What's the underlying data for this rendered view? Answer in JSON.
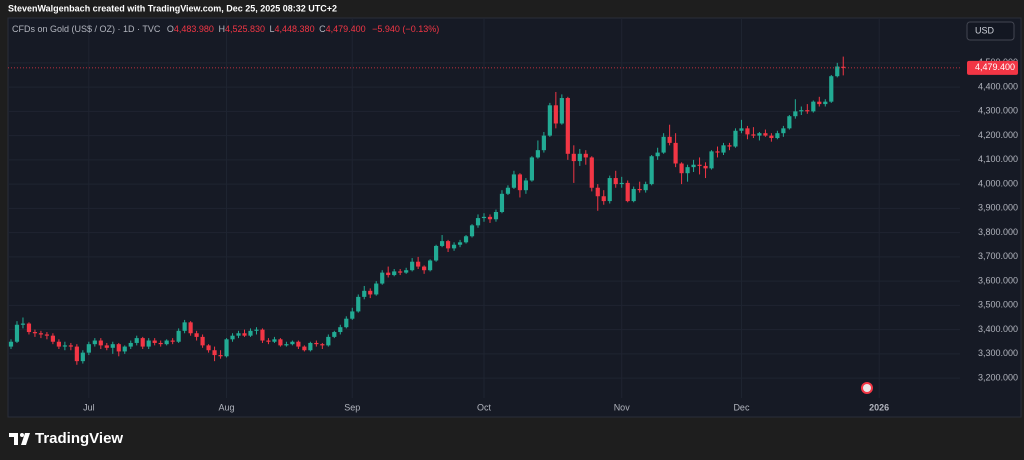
{
  "attribution": "StevenWalgenbach created with TradingView.com, Dec 25, 2025 08:32 UTC+2",
  "currency_button": "USD",
  "brand": "TradingView",
  "chart_data": {
    "type": "candlestick",
    "header": {
      "symbol": "CFDs on Gold (US$ / OZ) · 1D · TVC",
      "open_prefix": "O",
      "open": "4,483.980",
      "high_prefix": "H",
      "high": "4,525.830",
      "low_prefix": "L",
      "low": "4,448.380",
      "close_prefix": "C",
      "close": "4,479.400",
      "change": "−5.940 (−0.13%)"
    },
    "up_color": "#22ab94",
    "down_color": "#f23645",
    "grid": true,
    "categories": [
      null,
      null,
      null,
      null,
      null,
      null,
      null,
      null,
      null,
      null,
      null,
      null,
      null,
      "Jul",
      null,
      null,
      null,
      null,
      null,
      null,
      null,
      null,
      null,
      null,
      null,
      null,
      null,
      null,
      null,
      null,
      null,
      null,
      null,
      null,
      null,
      null,
      "Aug",
      null,
      null,
      null,
      null,
      null,
      null,
      null,
      null,
      null,
      null,
      null,
      null,
      null,
      null,
      null,
      null,
      null,
      null,
      null,
      null,
      "Sep",
      null,
      null,
      null,
      null,
      null,
      null,
      null,
      null,
      null,
      null,
      null,
      null,
      null,
      null,
      null,
      null,
      null,
      null,
      null,
      null,
      null,
      "Oct",
      null,
      null,
      null,
      null,
      null,
      null,
      null,
      null,
      null,
      null,
      null,
      null,
      null,
      null,
      null,
      null,
      null,
      null,
      null,
      null,
      null,
      null,
      "Nov",
      null,
      null,
      null,
      null,
      null,
      null,
      null,
      null,
      null,
      null,
      null,
      null,
      null,
      null,
      null,
      null,
      null,
      null,
      null,
      "Dec",
      null,
      null,
      null,
      null,
      null,
      null,
      null,
      null,
      null,
      null,
      null,
      null,
      null,
      null,
      null,
      null,
      null,
      null,
      null,
      null,
      null,
      null,
      "2026",
      null,
      null,
      null,
      null,
      null,
      null,
      null,
      null,
      null,
      null,
      null,
      null,
      null
    ],
    "open": [
      3330,
      3350,
      3420,
      3425,
      3390,
      3385,
      3380,
      3375,
      3350,
      3330,
      3335,
      3330,
      3270,
      3305,
      3340,
      3355,
      3335,
      3325,
      3340,
      3310,
      3330,
      3345,
      3365,
      3330,
      3355,
      3345,
      3340,
      3355,
      3350,
      3395,
      3430,
      3385,
      3370,
      3335,
      3315,
      3295,
      3290,
      3360,
      3375,
      3385,
      3375,
      3395,
      3400,
      3355,
      3350,
      3360,
      3335,
      3340,
      3350,
      3330,
      3315,
      3345,
      3340,
      3335,
      3370,
      3390,
      3410,
      3445,
      3475,
      3535,
      3560,
      3545,
      3590,
      3635,
      3625,
      3640,
      3635,
      3645,
      3680,
      3660,
      3645,
      3685,
      3745,
      3765,
      3735,
      3750,
      3760,
      3785,
      3830,
      3860,
      3865,
      3855,
      3885,
      3960,
      3985,
      4040,
      3975,
      4015,
      4110,
      4140,
      4200,
      4325,
      4250,
      4355,
      4125,
      4095,
      4125,
      4110,
      3985,
      3950,
      3930,
      4025,
      4000,
      4005,
      3930,
      3980,
      3975,
      4000,
      4115,
      4130,
      4195,
      4170,
      4085,
      4045,
      4070,
      4080,
      4075,
      4065,
      4135,
      4130,
      4160,
      4155,
      4220,
      4230,
      4205,
      4200,
      4210,
      4200,
      4190,
      4210,
      4230,
      4280,
      4300,
      4305,
      4300,
      4340,
      4330,
      4340,
      4445,
      4483.98,
      null,
      null,
      null,
      null,
      null,
      null,
      null,
      null,
      null,
      null,
      null,
      null,
      null,
      null,
      null,
      null,
      null,
      null,
      null
    ],
    "high": [
      3360,
      3435,
      3450,
      3430,
      3400,
      3395,
      3390,
      3385,
      3360,
      3350,
      3345,
      3340,
      3315,
      3350,
      3365,
      3365,
      3345,
      3350,
      3345,
      3335,
      3355,
      3375,
      3370,
      3365,
      3365,
      3355,
      3360,
      3365,
      3405,
      3440,
      3435,
      3395,
      3380,
      3340,
      3330,
      3315,
      3365,
      3385,
      3395,
      3400,
      3405,
      3410,
      3405,
      3365,
      3370,
      3365,
      3350,
      3355,
      3355,
      3335,
      3350,
      3355,
      3345,
      3380,
      3395,
      3420,
      3455,
      3490,
      3545,
      3580,
      3570,
      3600,
      3645,
      3660,
      3650,
      3650,
      3655,
      3695,
      3700,
      3665,
      3690,
      3750,
      3790,
      3770,
      3760,
      3770,
      3790,
      3835,
      3875,
      3880,
      3875,
      3895,
      3975,
      3995,
      4055,
      4045,
      4025,
      4115,
      4180,
      4215,
      4335,
      4380,
      4370,
      4360,
      4160,
      4145,
      4140,
      4115,
      4000,
      3975,
      4035,
      4055,
      4030,
      4015,
      3990,
      4010,
      4010,
      4120,
      4150,
      4210,
      4245,
      4210,
      4090,
      4080,
      4100,
      4110,
      4090,
      4140,
      4155,
      4170,
      4170,
      4230,
      4265,
      4240,
      4235,
      4215,
      4225,
      4210,
      4220,
      4240,
      4285,
      4350,
      4320,
      4330,
      4345,
      4360,
      4350,
      4450,
      4500,
      4525.83,
      null,
      null,
      null,
      null,
      null,
      null,
      null,
      null,
      null,
      null,
      null,
      null,
      null,
      null,
      null,
      null,
      null,
      null,
      null
    ],
    "low": [
      3320,
      3345,
      3405,
      3380,
      3370,
      3365,
      3360,
      3340,
      3320,
      3315,
      3315,
      3255,
      3260,
      3295,
      3330,
      3320,
      3315,
      3300,
      3290,
      3300,
      3320,
      3335,
      3320,
      3320,
      3335,
      3330,
      3335,
      3340,
      3345,
      3385,
      3375,
      3355,
      3325,
      3305,
      3270,
      3280,
      3285,
      3350,
      3365,
      3370,
      3370,
      3380,
      3345,
      3340,
      3345,
      3330,
      3330,
      3335,
      3320,
      3310,
      3310,
      3330,
      3320,
      3330,
      3365,
      3380,
      3405,
      3440,
      3470,
      3525,
      3530,
      3540,
      3585,
      3615,
      3620,
      3625,
      3630,
      3640,
      3650,
      3630,
      3640,
      3680,
      3740,
      3720,
      3725,
      3740,
      3755,
      3780,
      3820,
      3845,
      3840,
      3845,
      3880,
      3955,
      3980,
      3945,
      3960,
      4010,
      4105,
      4130,
      4195,
      4230,
      4245,
      4100,
      4005,
      4075,
      4080,
      3970,
      3890,
      3915,
      3920,
      3985,
      3985,
      3925,
      3925,
      3965,
      3965,
      3995,
      4100,
      4125,
      4160,
      4070,
      4000,
      4010,
      4050,
      4040,
      4025,
      4060,
      4110,
      4120,
      4140,
      4150,
      4210,
      4185,
      4190,
      4180,
      4195,
      4175,
      4185,
      4195,
      4225,
      4270,
      4285,
      4290,
      4295,
      4320,
      4320,
      4335,
      4440,
      4448.38,
      null,
      null,
      null,
      null,
      null,
      null,
      null,
      null,
      null,
      null,
      null,
      null,
      null,
      null,
      null,
      null,
      null,
      null,
      null
    ],
    "close": [
      3350,
      3420,
      3425,
      3390,
      3385,
      3380,
      3375,
      3350,
      3330,
      3335,
      3330,
      3270,
      3305,
      3340,
      3355,
      3335,
      3325,
      3340,
      3310,
      3330,
      3345,
      3365,
      3330,
      3355,
      3345,
      3340,
      3355,
      3350,
      3395,
      3430,
      3385,
      3370,
      3335,
      3315,
      3295,
      3290,
      3360,
      3375,
      3385,
      3375,
      3395,
      3400,
      3355,
      3350,
      3360,
      3335,
      3340,
      3350,
      3330,
      3315,
      3345,
      3340,
      3335,
      3370,
      3390,
      3410,
      3445,
      3475,
      3535,
      3560,
      3545,
      3590,
      3635,
      3625,
      3640,
      3635,
      3645,
      3680,
      3660,
      3645,
      3685,
      3745,
      3765,
      3735,
      3750,
      3760,
      3785,
      3830,
      3860,
      3865,
      3855,
      3885,
      3960,
      3985,
      4040,
      3975,
      4015,
      4110,
      4140,
      4200,
      4325,
      4250,
      4355,
      4125,
      4095,
      4125,
      4110,
      3985,
      3950,
      3930,
      4025,
      4000,
      4005,
      3930,
      3980,
      3975,
      4000,
      4115,
      4130,
      4195,
      4170,
      4085,
      4045,
      4070,
      4080,
      4075,
      4065,
      4135,
      4130,
      4160,
      4155,
      4220,
      4230,
      4205,
      4200,
      4210,
      4200,
      4190,
      4210,
      4230,
      4280,
      4300,
      4305,
      4300,
      4340,
      4330,
      4340,
      4445,
      4485,
      4479.4,
      null,
      null,
      null,
      null,
      null,
      null,
      null,
      null,
      null,
      null,
      null,
      null,
      null,
      null,
      null,
      null,
      null,
      null,
      null
    ],
    "ylim": [
      3118,
      4685
    ],
    "yticks": [
      {
        "value": 3200,
        "label": "3,200.000"
      },
      {
        "value": 3300,
        "label": "3,300.000"
      },
      {
        "value": 3400,
        "label": "3,400.000"
      },
      {
        "value": 3500,
        "label": "3,500.000"
      },
      {
        "value": 3600,
        "label": "3,600.000"
      },
      {
        "value": 3700,
        "label": "3,700.000"
      },
      {
        "value": 3800,
        "label": "3,800.000"
      },
      {
        "value": 3900,
        "label": "3,900.000"
      },
      {
        "value": 4000,
        "label": "4,000.000"
      },
      {
        "value": 4100,
        "label": "4,100.000"
      },
      {
        "value": 4200,
        "label": "4,200.000"
      },
      {
        "value": 4300,
        "label": "4,300.000"
      },
      {
        "value": 4400,
        "label": "4,400.000"
      },
      {
        "value": 4500,
        "label": "4,500.000"
      }
    ],
    "last_price": {
      "value": 4479.4,
      "label": "4,479.400"
    }
  }
}
